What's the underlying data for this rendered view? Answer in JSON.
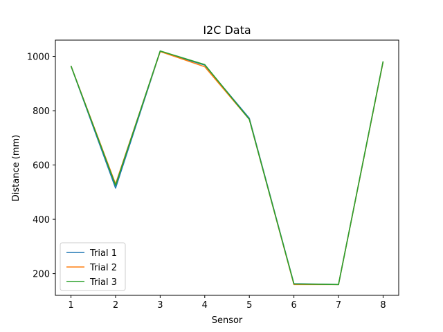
{
  "chart_data": {
    "type": "line",
    "title": "I2C Data",
    "xlabel": "Sensor",
    "ylabel": "Distance (mm)",
    "x": [
      1,
      2,
      3,
      4,
      5,
      6,
      7,
      8
    ],
    "xlim": [
      0.65,
      8.35
    ],
    "ylim": [
      120,
      1060
    ],
    "xticks": [
      1,
      2,
      3,
      4,
      5,
      6,
      7,
      8
    ],
    "yticks": [
      200,
      400,
      600,
      800,
      1000
    ],
    "grid": false,
    "legend_position": "lower-left",
    "series": [
      {
        "name": "Trial 1",
        "color": "#1f77b4",
        "values": [
          965,
          515,
          1018,
          968,
          772,
          163,
          160,
          980
        ]
      },
      {
        "name": "Trial 2",
        "color": "#ff7f0e",
        "values": [
          965,
          530,
          1018,
          962,
          768,
          160,
          160,
          980
        ]
      },
      {
        "name": "Trial 3",
        "color": "#2ca02c",
        "values": [
          965,
          525,
          1020,
          970,
          768,
          162,
          160,
          982
        ]
      }
    ]
  }
}
